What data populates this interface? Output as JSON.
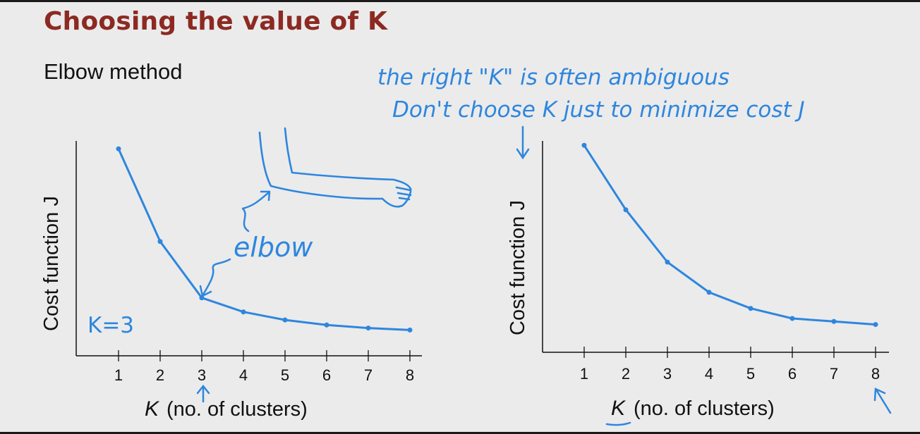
{
  "slide": {
    "title": "Choosing the value of K",
    "subtitle": "Elbow method"
  },
  "annotations": {
    "top_line1": "the right \"K\" is often ambiguous",
    "top_line2": "Don't choose K just to minimize cost J",
    "elbow": "elbow",
    "k_equals": "K=3"
  },
  "colors": {
    "title": "#8c2a22",
    "ink": "#2e86de",
    "axis": "#111111"
  },
  "chart_data": [
    {
      "type": "line",
      "xlabel_var": "K",
      "xlabel": "(no. of clusters)",
      "ylabel": "Cost function J",
      "x": [
        1,
        2,
        3,
        4,
        5,
        6,
        7,
        8
      ],
      "values": [
        100,
        54,
        26,
        19,
        15,
        12.5,
        11,
        10
      ],
      "ylim": [
        0,
        105
      ],
      "elbow_k": 3
    },
    {
      "type": "line",
      "xlabel_var": "K",
      "xlabel": "(no. of clusters)",
      "ylabel": "Cost function J",
      "x": [
        1,
        2,
        3,
        4,
        5,
        6,
        7,
        8
      ],
      "values": [
        100,
        68,
        42,
        27,
        19,
        14,
        12.5,
        11
      ],
      "ylim": [
        0,
        105
      ]
    }
  ]
}
